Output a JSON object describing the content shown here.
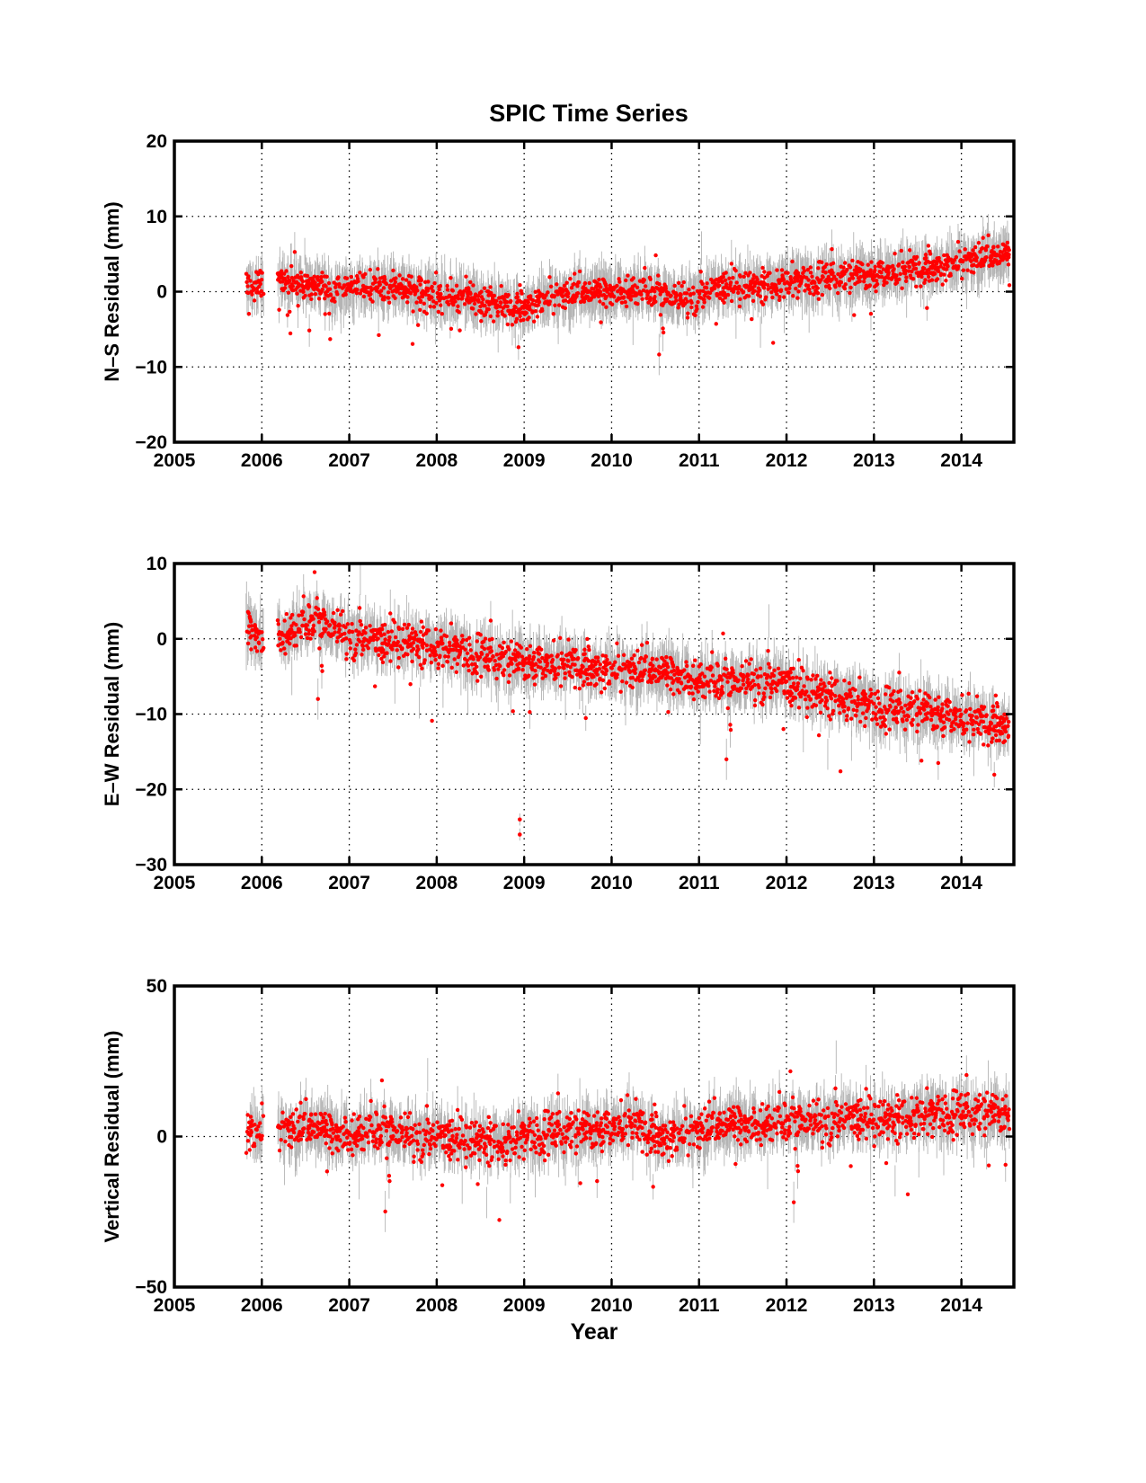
{
  "title": "SPIC Time Series",
  "chart_data": [
    {
      "type": "scatter",
      "title": "SPIC Time Series",
      "xlabel": "",
      "ylabel": "N-S Residual (mm)",
      "xlim": [
        2005,
        2014.6
      ],
      "ylim": [
        -20,
        20
      ],
      "xticks": [
        2005,
        2006,
        2007,
        2008,
        2009,
        2010,
        2011,
        2012,
        2013,
        2014
      ],
      "yticks": [
        -20,
        -10,
        0,
        10,
        20
      ],
      "grid": true,
      "marker_color": "#ff0000",
      "errorbar_color": "#b4b4b4",
      "series": [
        {
          "x": [
            2005.82,
            2005.9,
            2006.0,
            2006.2,
            2006.4,
            2006.6,
            2006.8,
            2007.0,
            2007.2,
            2007.4,
            2007.6,
            2007.8,
            2008.0,
            2008.2,
            2008.4,
            2008.6,
            2008.8,
            2009.0,
            2009.2,
            2009.4,
            2009.6,
            2009.8,
            2010.0,
            2010.2,
            2010.4,
            2010.6,
            2010.8,
            2011.0,
            2011.2,
            2011.4,
            2011.6,
            2011.8,
            2012.0,
            2012.2,
            2012.4,
            2012.6,
            2012.8,
            2013.0,
            2013.2,
            2013.4,
            2013.6,
            2013.8,
            2014.0,
            2014.2,
            2014.4,
            2014.55
          ],
          "y": [
            1.0,
            0.8,
            1.2,
            1.5,
            1.0,
            0.8,
            0.5,
            0.3,
            0.5,
            0.8,
            0.6,
            0.2,
            -0.5,
            -0.8,
            -1.0,
            -1.5,
            -2.0,
            -2.0,
            -1.0,
            -0.5,
            -0.3,
            -0.2,
            0.0,
            0.3,
            0.2,
            -0.5,
            -1.0,
            -0.5,
            0.5,
            0.8,
            0.8,
            1.0,
            1.2,
            1.5,
            1.8,
            2.0,
            2.2,
            2.3,
            2.6,
            2.9,
            3.2,
            3.5,
            4.0,
            4.4,
            4.6,
            4.8
          ],
          "noise": 1.8
        }
      ]
    },
    {
      "type": "scatter",
      "xlabel": "",
      "ylabel": "E-W Residual (mm)",
      "xlim": [
        2005,
        2014.6
      ],
      "ylim": [
        -30,
        10
      ],
      "xticks": [
        2005,
        2006,
        2007,
        2008,
        2009,
        2010,
        2011,
        2012,
        2013,
        2014
      ],
      "yticks": [
        -30,
        -20,
        -10,
        0,
        10
      ],
      "grid": true,
      "marker_color": "#ff0000",
      "errorbar_color": "#b4b4b4",
      "series": [
        {
          "x": [
            2005.82,
            2005.9,
            2006.0,
            2006.2,
            2006.4,
            2006.6,
            2006.8,
            2007.0,
            2007.2,
            2007.4,
            2007.6,
            2007.8,
            2008.0,
            2008.2,
            2008.4,
            2008.6,
            2008.8,
            2009.0,
            2009.2,
            2009.4,
            2009.6,
            2009.8,
            2010.0,
            2010.2,
            2010.4,
            2010.6,
            2010.8,
            2011.0,
            2011.2,
            2011.4,
            2011.6,
            2011.8,
            2012.0,
            2012.2,
            2012.4,
            2012.6,
            2012.8,
            2013.0,
            2013.2,
            2013.4,
            2013.6,
            2013.8,
            2014.0,
            2014.2,
            2014.4,
            2014.55
          ],
          "y": [
            1.5,
            1.0,
            0.0,
            0.5,
            1.5,
            2.5,
            1.5,
            0.5,
            0.0,
            -0.5,
            -0.2,
            -0.5,
            -1.0,
            -1.5,
            -2.0,
            -2.3,
            -2.8,
            -3.0,
            -3.2,
            -3.3,
            -3.5,
            -3.8,
            -4.0,
            -4.2,
            -4.3,
            -4.6,
            -5.0,
            -5.3,
            -5.6,
            -5.8,
            -5.5,
            -5.5,
            -6.0,
            -6.8,
            -7.2,
            -7.5,
            -8.5,
            -9.0,
            -9.2,
            -9.3,
            -9.5,
            -10.0,
            -10.5,
            -11.0,
            -11.2,
            -11.5
          ],
          "noise": 2.3
        },
        {
          "x": [
            2008.95,
            2008.95
          ],
          "y": [
            -24.0,
            -26.0
          ],
          "noise": 0
        }
      ]
    },
    {
      "type": "scatter",
      "xlabel": "Year",
      "ylabel": "Vertical Residual (mm)",
      "xlim": [
        2005,
        2014.6
      ],
      "ylim": [
        -50,
        50
      ],
      "xticks": [
        2005,
        2006,
        2007,
        2008,
        2009,
        2010,
        2011,
        2012,
        2013,
        2014
      ],
      "yticks": [
        -50,
        0,
        50
      ],
      "grid": true,
      "marker_color": "#ff0000",
      "errorbar_color": "#b4b4b4",
      "series": [
        {
          "x": [
            2005.82,
            2005.9,
            2006.0,
            2006.2,
            2006.4,
            2006.6,
            2006.8,
            2007.0,
            2007.2,
            2007.4,
            2007.6,
            2007.8,
            2008.0,
            2008.2,
            2008.4,
            2008.6,
            2008.8,
            2009.0,
            2009.2,
            2009.4,
            2009.6,
            2009.8,
            2010.0,
            2010.2,
            2010.4,
            2010.6,
            2010.8,
            2011.0,
            2011.2,
            2011.4,
            2011.6,
            2011.8,
            2012.0,
            2012.2,
            2012.4,
            2012.6,
            2012.8,
            2013.0,
            2013.2,
            2013.4,
            2013.6,
            2013.8,
            2014.0,
            2014.2,
            2014.4,
            2014.55
          ],
          "y": [
            3.0,
            2.0,
            2.0,
            3.0,
            2.0,
            3.0,
            1.0,
            1.0,
            2.0,
            2.0,
            1.0,
            0.0,
            0.0,
            -1.0,
            -1.0,
            -1.0,
            -2.0,
            0.0,
            1.0,
            2.0,
            2.0,
            2.5,
            3.0,
            5.0,
            2.0,
            0.0,
            1.0,
            2.0,
            3.0,
            4.0,
            4.0,
            5.0,
            5.0,
            5.0,
            5.0,
            6.0,
            6.0,
            6.0,
            6.0,
            7.0,
            7.0,
            8.0,
            8.0,
            8.0,
            8.0,
            8.0
          ],
          "noise": 6.0
        }
      ]
    }
  ]
}
